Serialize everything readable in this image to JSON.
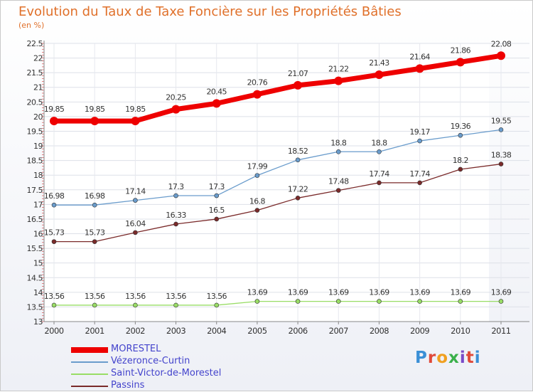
{
  "title": "Evolution du Taux de Taxe Foncière sur les Propriétés Bâties",
  "unit_label": "(en %)",
  "logo_text": "Proxiti",
  "logo_colors": [
    "#3a8fd6",
    "#e04a3a",
    "#f0a020",
    "#3ab04a",
    "#7a4ac8",
    "#e04a3a",
    "#3a8fd6"
  ],
  "chart_data": {
    "type": "line",
    "title": "Evolution du Taux de Taxe Foncière sur les Propriétés Bâties",
    "ylabel": "(en %)",
    "xlabel": "",
    "x": [
      "2000",
      "2001",
      "2002",
      "2003",
      "2004",
      "2005",
      "2006",
      "2007",
      "2008",
      "2009",
      "2010",
      "2011"
    ],
    "ylim": [
      13,
      22.5
    ],
    "yticks": [
      "13",
      "13.5",
      "14",
      "14.5",
      "15",
      "15.5",
      "16",
      "16.5",
      "17",
      "17.5",
      "18",
      "18.5",
      "19",
      "19.5",
      "20",
      "20.5",
      "21",
      "21.5",
      "22",
      "22.5"
    ],
    "series": [
      {
        "name": "MORESTEL",
        "color": "#ee0000",
        "values": [
          19.85,
          19.85,
          19.85,
          20.25,
          20.45,
          20.76,
          21.07,
          21.22,
          21.43,
          21.64,
          21.86,
          22.08
        ],
        "labels": [
          "19.85",
          "19.85",
          "19.85",
          "20.25",
          "20.45",
          "20.76",
          "21.07",
          "21.22",
          "21.43",
          "21.64",
          "21.86",
          "22.08"
        ]
      },
      {
        "name": "Vézeronce-Curtin",
        "color": "#6a9ccc",
        "values": [
          16.98,
          16.98,
          17.14,
          17.3,
          17.3,
          17.99,
          18.52,
          18.8,
          18.8,
          19.17,
          19.36,
          19.55
        ],
        "labels": [
          "16.98",
          "16.98",
          "17.14",
          "17.3",
          "17.3",
          "17.99",
          "18.52",
          "18.8",
          "18.8",
          "19.17",
          "19.36",
          "19.55"
        ]
      },
      {
        "name": "Saint-Victor-de-Morestel",
        "color": "#99dd66",
        "values": [
          13.56,
          13.56,
          13.56,
          13.56,
          13.56,
          13.69,
          13.69,
          13.69,
          13.69,
          13.69,
          13.69,
          13.69
        ],
        "labels": [
          "13.56",
          "13.56",
          "13.56",
          "13.56",
          "13.56",
          "13.69",
          "13.69",
          "13.69",
          "13.69",
          "13.69",
          "13.69",
          "13.69"
        ]
      },
      {
        "name": "Passins",
        "color": "#7a2a2a",
        "values": [
          15.73,
          15.73,
          16.04,
          16.33,
          16.5,
          16.8,
          17.22,
          17.48,
          17.74,
          17.74,
          18.2,
          18.38
        ],
        "labels": [
          "15.73",
          "15.73",
          "16.04",
          "16.33",
          "16.5",
          "16.8",
          "17.22",
          "17.48",
          "17.74",
          "17.74",
          "18.2",
          "18.38"
        ]
      }
    ]
  }
}
